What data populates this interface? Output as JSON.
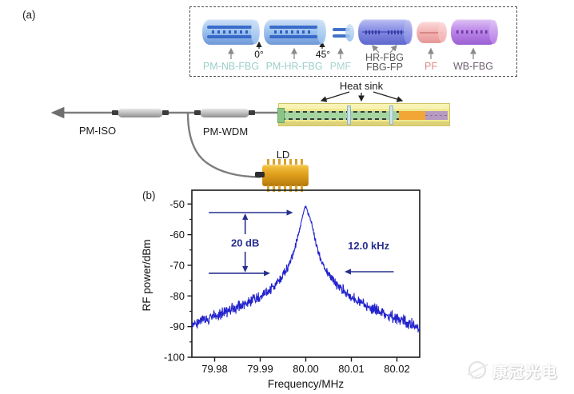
{
  "figure": {
    "panel_a_label": "(a)",
    "panel_b_label": "(b)"
  },
  "legend": {
    "components": [
      {
        "label": "PM-NB-FBG",
        "label_color": "#9bcfc9",
        "colors": {
          "light": "#cfe2f7",
          "mid": "#9cc2ee",
          "dark": "#6f97d8",
          "detail": "#2f62c4"
        }
      },
      {
        "label": "PM-HR-FBG",
        "label_color": "#9bcfc9",
        "colors": {
          "light": "#cfe2f7",
          "mid": "#9cc2ee",
          "dark": "#6f97d8",
          "detail": "#2f62c4"
        }
      },
      {
        "label": "PMF",
        "label_color": "#a8d4cf",
        "colors": {
          "light": "#cfe2f7",
          "mid": "#94bcec",
          "dark": "#6档90d4",
          "detail": "#2f62c4"
        }
      },
      {
        "label_line1": "HR-FBG",
        "label_line2": "FBG-FP",
        "label_color": "#575757",
        "colors": {
          "light": "#bcc0f3",
          "mid": "#8289e2",
          "dark": "#5f68cd",
          "detail": "#373ea6"
        }
      },
      {
        "label": "PF",
        "label_color": "#df8d8d",
        "colors": {
          "light": "#fbdada",
          "mid": "#f4b3b3",
          "dark": "#e79898",
          "detail": "#d07c7c"
        }
      },
      {
        "label": "WB-FBG",
        "label_color": "#6e5f70",
        "colors": {
          "light": "#ddc3f4",
          "mid": "#bb84e8",
          "dark": "#9a5fd2",
          "detail": "#6b3a9e"
        }
      }
    ],
    "splice_angles": [
      "0°",
      "45°"
    ]
  },
  "setup": {
    "heat_sink_label": "Heat sink",
    "pm_iso_label": "PM-ISO",
    "pm_wdm_label": "PM-WDM",
    "ld_label": "LD"
  },
  "watermark": {
    "text": "康冠光电"
  },
  "chart_data": {
    "type": "line",
    "title": "",
    "xlabel": "Frequency/MHz",
    "ylabel": "RF power/dBm",
    "xlim": [
      79.975,
      80.025
    ],
    "ylim": [
      -100,
      -45.5
    ],
    "xtick_values": [
      79.98,
      79.99,
      80.0,
      80.01,
      80.02
    ],
    "xticks": [
      "79.98",
      "79.99",
      "80.00",
      "80.01",
      "80.02"
    ],
    "yticks": [
      -50,
      -60,
      -70,
      -80,
      -90,
      -100
    ],
    "ytick_minor": [
      -55,
      -65,
      -75,
      -85,
      -95
    ],
    "grid": false,
    "legend": "none",
    "line_color": "#2323cd",
    "axis_color": "#1a1a1a",
    "annotation_color": "#28308f",
    "peak": {
      "center_mhz": 80.0,
      "peak_dbm": -50.5,
      "snr_db": 20,
      "linewidth_khz": 12.0
    },
    "annotations": [
      {
        "type": "harrow",
        "y": -52.8,
        "x_from": 79.9787,
        "x_to": 79.9972
      },
      {
        "type": "vdouble",
        "x": 79.9867,
        "y_from": -52.8,
        "y_to": -72.6,
        "label": "20 dB"
      },
      {
        "type": "harrow",
        "y": -72.6,
        "x_from": 79.9787,
        "x_to": 79.9922
      },
      {
        "type": "harrow",
        "y": -72.1,
        "x_from": 80.0193,
        "x_to": 80.0085,
        "label": "12.0 kHz",
        "label_x": 80.0138,
        "label_y": -64.8
      }
    ],
    "profile": [
      [
        79.975,
        -89.8
      ],
      [
        79.9765,
        -88.6
      ],
      [
        79.978,
        -87.9
      ],
      [
        79.98,
        -86.7
      ],
      [
        79.982,
        -85.6
      ],
      [
        79.984,
        -84.3
      ],
      [
        79.986,
        -83.0
      ],
      [
        79.988,
        -81.8
      ],
      [
        79.99,
        -80.3
      ],
      [
        79.9915,
        -78.8
      ],
      [
        79.993,
        -76.8
      ],
      [
        79.9945,
        -74.4
      ],
      [
        79.9955,
        -72.2
      ],
      [
        79.9963,
        -69.8
      ],
      [
        79.997,
        -67.0
      ],
      [
        79.9977,
        -63.8
      ],
      [
        79.9983,
        -60.5
      ],
      [
        79.9988,
        -57.2
      ],
      [
        79.9993,
        -53.8
      ],
      [
        79.9997,
        -51.4
      ],
      [
        80.0,
        -50.6
      ],
      [
        80.0002,
        -51.5
      ],
      [
        80.0005,
        -53.2
      ],
      [
        80.0008,
        -54.0
      ],
      [
        80.001,
        -54.8
      ],
      [
        80.0013,
        -56.2
      ],
      [
        80.0016,
        -58.4
      ],
      [
        80.002,
        -61.2
      ],
      [
        80.0024,
        -63.8
      ],
      [
        80.0028,
        -66.0
      ],
      [
        80.0033,
        -68.2
      ],
      [
        80.004,
        -70.4
      ],
      [
        80.0048,
        -72.4
      ],
      [
        80.0057,
        -74.4
      ],
      [
        80.0067,
        -76.2
      ],
      [
        80.008,
        -78.0
      ],
      [
        80.0095,
        -79.8
      ],
      [
        80.011,
        -81.3
      ],
      [
        80.0128,
        -82.8
      ],
      [
        80.0147,
        -84.2
      ],
      [
        80.0166,
        -85.5
      ],
      [
        80.0185,
        -86.6
      ],
      [
        80.0205,
        -87.7
      ],
      [
        80.0225,
        -88.8
      ],
      [
        80.024,
        -89.8
      ],
      [
        80.025,
        -90.5
      ]
    ],
    "noise_db": 1.5,
    "n_points": 720,
    "seed": 9
  }
}
